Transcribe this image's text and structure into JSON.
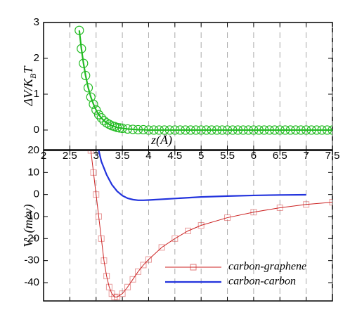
{
  "chart_data": [
    {
      "type": "line",
      "xlabel": "z(Å)",
      "ylabel": [
        "ΔV/K",
        "B",
        "T"
      ],
      "xlim": [
        2,
        7.5
      ],
      "xticks": [
        2,
        2.5,
        3,
        3.5,
        4,
        4.5,
        5,
        5.5,
        6,
        6.5,
        7,
        7.5
      ],
      "ylim": [
        -0.55,
        3
      ],
      "yticks": [
        0,
        1,
        2,
        3
      ],
      "grid": true,
      "series": [
        {
          "color": "#22bb22",
          "marker": "circle",
          "x": [
            2.68,
            2.72,
            2.76,
            2.8,
            2.85,
            2.9,
            2.95,
            3.0,
            3.05,
            3.1,
            3.15,
            3.2,
            3.25,
            3.3,
            3.35,
            3.4,
            3.45,
            3.5,
            3.6,
            3.7,
            3.8,
            3.9,
            4.0,
            4.1,
            4.2,
            4.3,
            4.4,
            4.5,
            4.6,
            4.7,
            4.8,
            4.9,
            5.0,
            5.1,
            5.2,
            5.3,
            5.4,
            5.5,
            5.6,
            5.7,
            5.8,
            5.9,
            6.0,
            6.1,
            6.2,
            6.3,
            6.4,
            6.5,
            6.6,
            6.7,
            6.8,
            6.9,
            7.0,
            7.1,
            7.2,
            7.3,
            7.4,
            7.5
          ],
          "values": [
            2.78,
            2.27,
            1.86,
            1.52,
            1.18,
            0.92,
            0.72,
            0.56,
            0.43,
            0.34,
            0.26,
            0.2,
            0.16,
            0.12,
            0.1,
            0.07,
            0.06,
            0.05,
            0.03,
            0.02,
            0.01,
            0.01,
            0,
            0,
            0,
            0,
            0,
            0,
            0,
            0,
            0,
            0,
            0,
            0,
            0,
            0,
            0,
            0,
            0,
            0,
            0,
            0,
            0,
            0,
            0,
            0,
            0,
            0,
            0,
            0,
            0,
            0,
            0,
            0,
            0,
            0,
            0,
            0
          ]
        }
      ]
    },
    {
      "type": "line",
      "ylabel": [
        "V",
        "z",
        " (mev)"
      ],
      "sharex": true,
      "ylim": [
        -48.3,
        20
      ],
      "yticks": [
        20,
        10,
        0,
        -10,
        -20,
        -30,
        -40
      ],
      "grid": true,
      "legend": "lower right",
      "series": [
        {
          "name": "carbon-graphene",
          "color": "#cc2222",
          "marker": "square",
          "x": [
            2.9,
            2.95,
            3.0,
            3.05,
            3.1,
            3.15,
            3.2,
            3.25,
            3.3,
            3.35,
            3.4,
            3.5,
            3.6,
            3.7,
            3.8,
            3.9,
            4.0,
            4.25,
            4.5,
            4.75,
            5.0,
            5.5,
            6.0,
            6.5,
            7.0,
            7.5
          ],
          "values": [
            20,
            10,
            0,
            -10,
            -20,
            -30,
            -37,
            -42,
            -45,
            -46.5,
            -46.5,
            -45,
            -42,
            -38.5,
            -35,
            -32,
            -29.5,
            -24,
            -20,
            -16.5,
            -14,
            -10.5,
            -8,
            -6,
            -4.5,
            -3.5
          ]
        },
        {
          "name": "carbon-carbon",
          "color": "#2233dd",
          "x": [
            3.05,
            3.1,
            3.2,
            3.3,
            3.4,
            3.5,
            3.6,
            3.7,
            3.8,
            3.9,
            4.0,
            4.5,
            5.0,
            5.5,
            6.0,
            6.5,
            7.0
          ],
          "values": [
            20,
            15,
            9,
            4.5,
            1.5,
            -0.5,
            -1.7,
            -2.3,
            -2.6,
            -2.6,
            -2.5,
            -1.8,
            -1.1,
            -0.7,
            -0.4,
            -0.2,
            -0.1
          ]
        }
      ]
    }
  ]
}
